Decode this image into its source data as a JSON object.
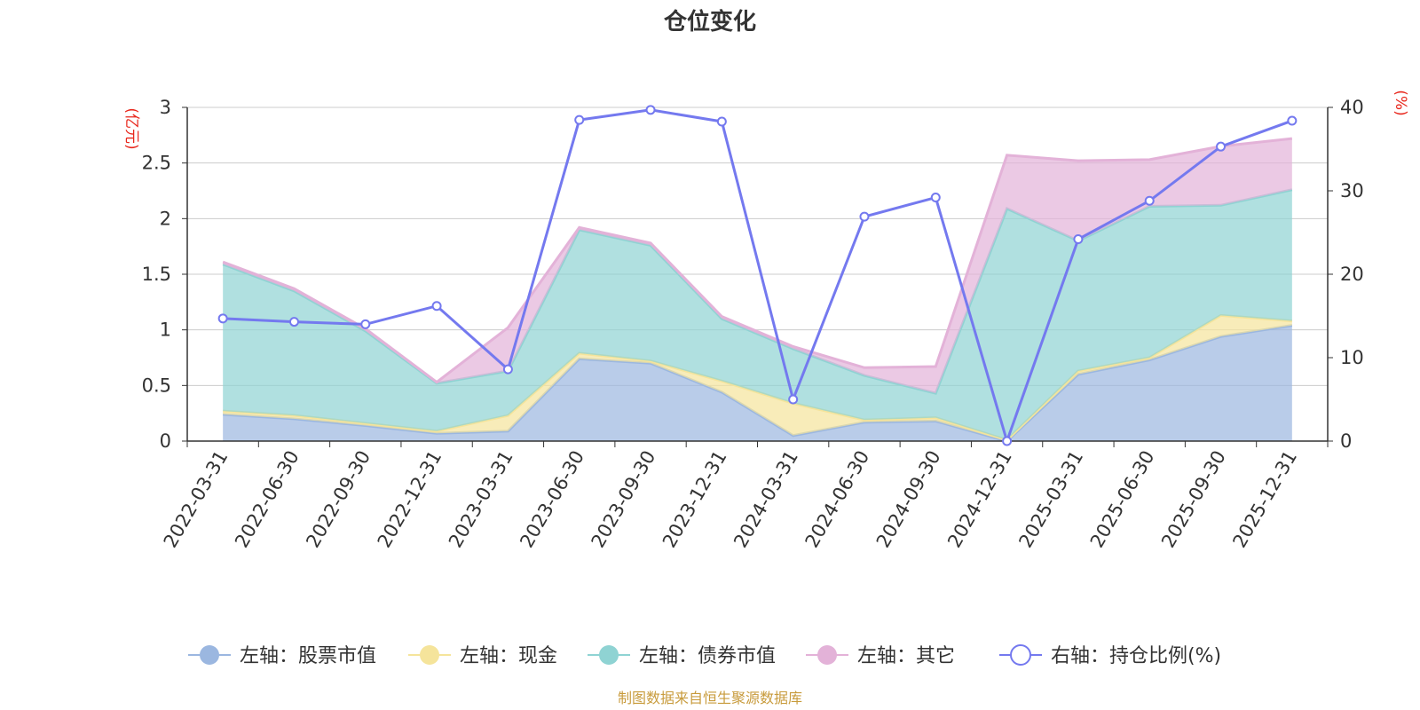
{
  "chart_data": {
    "type": "area",
    "title": "仓位变化",
    "left_unit": "(亿元)",
    "right_unit": "(%)",
    "categories": [
      "2022-03-31",
      "2022-06-30",
      "2022-09-30",
      "2022-12-31",
      "2023-03-31",
      "2023-06-30",
      "2023-09-30",
      "2023-12-31",
      "2024-03-31",
      "2024-06-30",
      "2024-09-30",
      "2024-12-31",
      "2025-03-31",
      "2025-06-30",
      "2025-09-30",
      "2025-12-31"
    ],
    "left_axis": {
      "min": 0,
      "max": 3,
      "ticks": [
        0,
        0.5,
        1,
        1.5,
        2,
        2.5,
        3
      ]
    },
    "right_axis": {
      "min": 0,
      "max": 40,
      "ticks": [
        0,
        10,
        20,
        30,
        40
      ]
    },
    "stacked": true,
    "series": [
      {
        "name": "左轴：股票市值",
        "axis": "left",
        "color": "#9bb7e0",
        "values": [
          0.24,
          0.2,
          0.14,
          0.07,
          0.09,
          0.74,
          0.7,
          0.44,
          0.05,
          0.17,
          0.18,
          0.0,
          0.6,
          0.73,
          0.94,
          1.04
        ]
      },
      {
        "name": "左轴：现金",
        "axis": "left",
        "color": "#f5e49b",
        "values": [
          0.03,
          0.03,
          0.02,
          0.02,
          0.14,
          0.05,
          0.02,
          0.1,
          0.29,
          0.02,
          0.03,
          0.01,
          0.03,
          0.02,
          0.19,
          0.04
        ]
      },
      {
        "name": "左轴：债券市值",
        "axis": "left",
        "color": "#8fd3d3",
        "values": [
          1.32,
          1.12,
          0.83,
          0.43,
          0.4,
          1.11,
          1.04,
          0.56,
          0.49,
          0.4,
          0.22,
          2.08,
          1.17,
          1.36,
          0.99,
          1.18
        ]
      },
      {
        "name": "左轴：其它",
        "axis": "left",
        "color": "#e3b2d8",
        "values": [
          0.02,
          0.02,
          0.02,
          0.01,
          0.39,
          0.02,
          0.02,
          0.02,
          0.02,
          0.07,
          0.24,
          0.48,
          0.72,
          0.42,
          0.53,
          0.46
        ]
      },
      {
        "name": "右轴：持仓比例(%)",
        "axis": "right",
        "type": "line",
        "color": "#7479ef",
        "values": [
          14.7,
          14.3,
          14.0,
          16.2,
          8.6,
          38.5,
          39.7,
          38.3,
          5.0,
          26.9,
          29.2,
          0.0,
          24.2,
          28.8,
          35.3,
          38.4
        ]
      }
    ]
  },
  "source_text": "制图数据来自恒生聚源数据库",
  "colors": {
    "unit_red": "#e8271c",
    "source_gold": "#c89b3c",
    "axis": "#333333",
    "grid": "#cccccc"
  }
}
